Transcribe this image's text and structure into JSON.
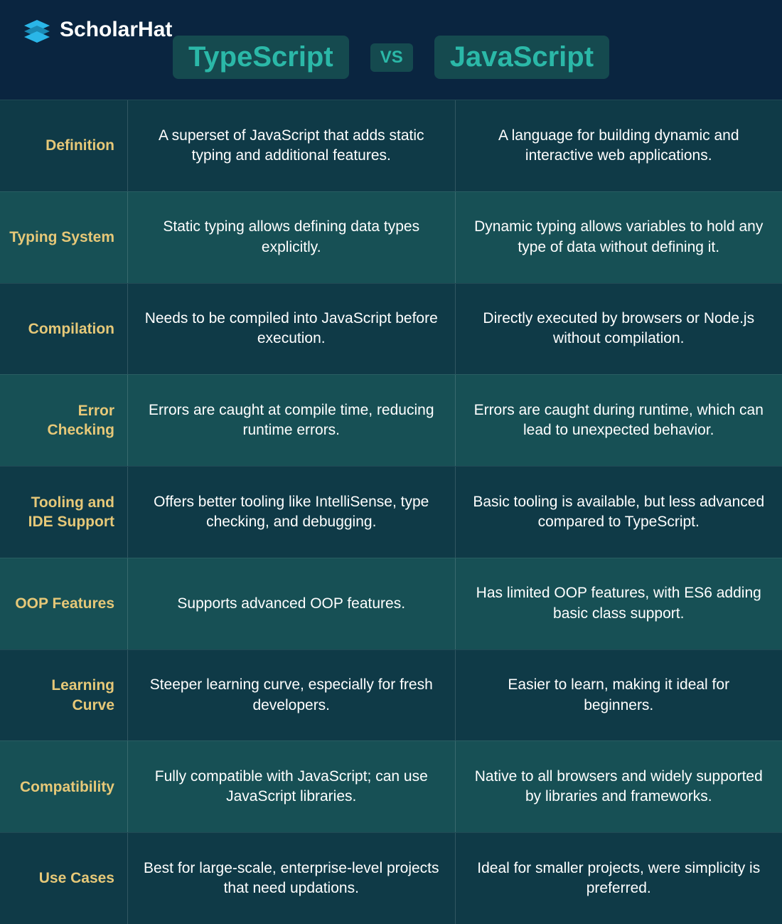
{
  "brand": "ScholarHat",
  "colors": {
    "bg_header": "#0a2540",
    "row_dark": "#0f3a47",
    "row_light": "#175055",
    "label_text": "#e6c878",
    "title_text": "#2bb8a8",
    "pill_bg": "#154a4f",
    "logo_cyan": "#2ab6e8",
    "white": "#ffffff"
  },
  "titles": {
    "left": "TypeScript",
    "vs": "VS",
    "right": "JavaScript"
  },
  "rows": [
    {
      "label": "Definition",
      "left": "A superset of JavaScript that adds static typing and additional features.",
      "right": "A language for building dynamic and interactive web applications."
    },
    {
      "label": "Typing System",
      "left": "Static typing allows defining data types explicitly.",
      "right": "Dynamic typing allows variables to hold any type of data without defining it."
    },
    {
      "label": "Compilation",
      "left": "Needs to be compiled into JavaScript before execution.",
      "right": "Directly executed by browsers or Node.js without compilation."
    },
    {
      "label": "Error Checking",
      "left": "Errors are caught at compile time, reducing runtime errors.",
      "right": "Errors are caught during runtime, which can lead to unexpected behavior."
    },
    {
      "label": "Tooling and IDE Support",
      "left": "Offers better tooling like IntelliSense, type checking, and debugging.",
      "right": "Basic tooling is available, but less advanced compared to TypeScript."
    },
    {
      "label": "OOP Features",
      "left": "Supports advanced OOP features.",
      "right": "Has limited OOP features, with ES6 adding basic class support."
    },
    {
      "label": "Learning Curve",
      "left": "Steeper learning curve, especially for fresh developers.",
      "right": "Easier to learn, making it ideal for beginners."
    },
    {
      "label": "Compatibility",
      "left": "Fully compatible with JavaScript; can use JavaScript libraries.",
      "right": "Native to all browsers and widely supported by libraries and frameworks."
    },
    {
      "label": "Use Cases",
      "left": "Best for large-scale, enterprise-level projects that need updations.",
      "right": "Ideal for smaller projects, were simplicity is preferred."
    }
  ]
}
